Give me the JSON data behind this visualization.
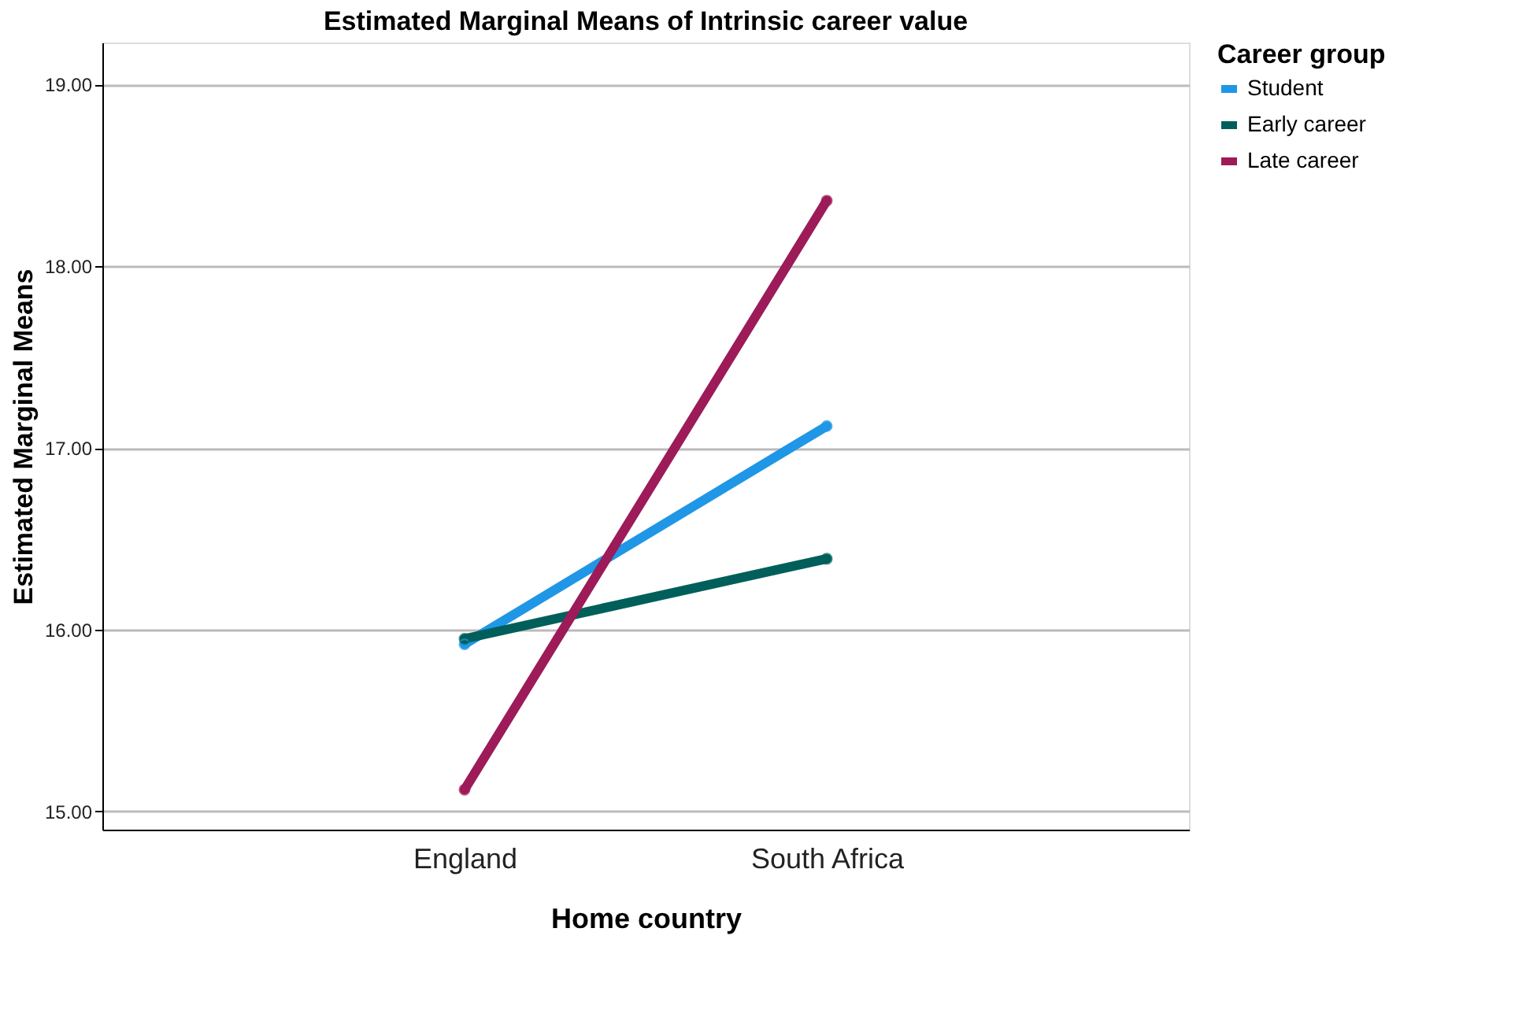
{
  "chart_data": {
    "type": "line",
    "title": "Estimated Marginal Means of Intrinsic career value",
    "xlabel": "Home country",
    "ylabel": "Estimated Marginal Means",
    "legend_title": "Career group",
    "categories": [
      "England",
      "South Africa"
    ],
    "series": [
      {
        "name": "Student",
        "color": "#1f97e6",
        "values": [
          15.92,
          17.12
        ]
      },
      {
        "name": "Early career",
        "color": "#005f5a",
        "values": [
          15.95,
          16.39
        ]
      },
      {
        "name": "Late career",
        "color": "#9c1b58",
        "values": [
          15.12,
          18.36
        ]
      }
    ],
    "ylim": [
      14.9,
      19.23
    ],
    "yticks": [
      {
        "value": 15,
        "label": "15.00"
      },
      {
        "value": 16,
        "label": "16.00"
      },
      {
        "value": 17,
        "label": "17.00"
      },
      {
        "value": 18,
        "label": "18.00"
      },
      {
        "value": 19,
        "label": "19.00"
      }
    ],
    "grid": "y",
    "legend": "top right",
    "marker": "circle",
    "line_style": "solid"
  }
}
